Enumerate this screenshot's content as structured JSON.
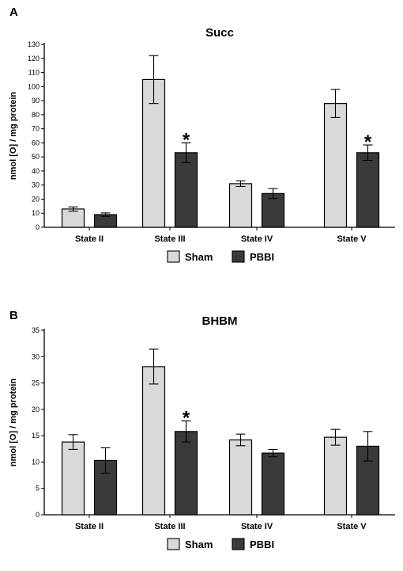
{
  "chart_data": [
    {
      "panel": "A",
      "type": "bar",
      "title": "Succ",
      "ylabel": "nmol [O] / mg protein",
      "xlabel": "",
      "ylim": [
        0,
        130
      ],
      "ytick_step": 10,
      "categories": [
        "State II",
        "State III",
        "State IV",
        "State V"
      ],
      "series": [
        {
          "name": "Sham",
          "values": [
            13,
            105,
            31,
            88
          ],
          "errors": [
            1.5,
            17,
            2,
            10
          ]
        },
        {
          "name": "PBBI",
          "values": [
            9,
            53,
            24,
            53
          ],
          "errors": [
            1.2,
            7,
            3.5,
            5.5
          ]
        }
      ],
      "significance": [
        {
          "category": "State III",
          "series": "PBBI",
          "label": "*"
        },
        {
          "category": "State V",
          "series": "PBBI",
          "label": "*"
        }
      ],
      "grid": false,
      "legend": "bottom",
      "colors": {
        "Sham": "#d9d9d9",
        "PBBI": "#3a3a3a"
      }
    },
    {
      "panel": "B",
      "type": "bar",
      "title": "BHBM",
      "ylabel": "nmol [O] / mg protein",
      "xlabel": "",
      "ylim": [
        0,
        35
      ],
      "ytick_step": 5,
      "categories": [
        "State II",
        "State III",
        "State IV",
        "State V"
      ],
      "series": [
        {
          "name": "Sham",
          "values": [
            13.8,
            28.1,
            14.2,
            14.7
          ],
          "errors": [
            1.4,
            3.3,
            1.1,
            1.5
          ]
        },
        {
          "name": "PBBI",
          "values": [
            10.3,
            15.8,
            11.7,
            13.0
          ],
          "errors": [
            2.4,
            2.0,
            0.7,
            2.8
          ]
        }
      ],
      "significance": [
        {
          "category": "State III",
          "series": "PBBI",
          "label": "*"
        }
      ],
      "grid": false,
      "legend": "bottom",
      "colors": {
        "Sham": "#d9d9d9",
        "PBBI": "#3a3a3a"
      }
    }
  ]
}
